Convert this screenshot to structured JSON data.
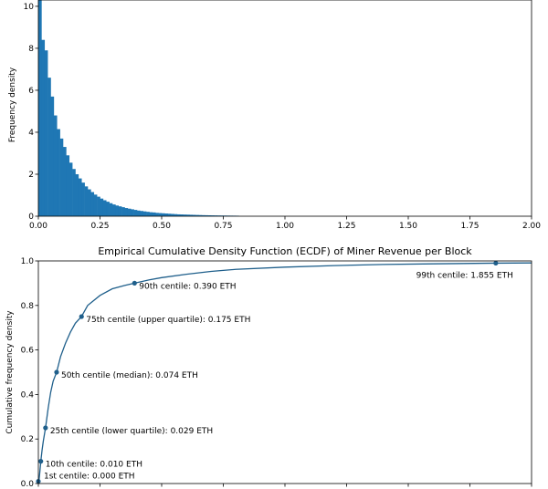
{
  "chart_data": [
    {
      "type": "bar",
      "title": "",
      "xlabel": "",
      "ylabel": "Frequency density",
      "xlim": [
        0,
        2.0
      ],
      "ylim": [
        0,
        10.3
      ],
      "xticks": [
        "0.00",
        "0.25",
        "0.50",
        "0.75",
        "1.00",
        "1.25",
        "1.50",
        "1.75",
        "2.00"
      ],
      "yticks": [
        "0",
        "2",
        "4",
        "6",
        "8",
        "10"
      ],
      "bar_color": "#1f77b4",
      "bin_width": 0.0125,
      "bins_start": [
        0.0,
        0.0125,
        0.025,
        0.0375,
        0.05,
        0.0625,
        0.075,
        0.0875,
        0.1,
        0.1125,
        0.125,
        0.1375,
        0.15,
        0.1625,
        0.175,
        0.1875,
        0.2,
        0.2125,
        0.225,
        0.2375,
        0.25,
        0.2625,
        0.275,
        0.2875,
        0.3,
        0.3125,
        0.325,
        0.3375,
        0.35,
        0.3625,
        0.375,
        0.3875,
        0.4,
        0.4125,
        0.425,
        0.4375,
        0.45,
        0.4625,
        0.475,
        0.4875,
        0.5,
        0.5125,
        0.525,
        0.5375,
        0.55,
        0.5625,
        0.575,
        0.5875,
        0.6,
        0.6125,
        0.625,
        0.6375,
        0.65,
        0.6625,
        0.675,
        0.6875,
        0.7,
        0.7125,
        0.725,
        0.7375,
        0.75,
        0.7625,
        0.775,
        0.7875,
        0.8
      ],
      "values": [
        10.3,
        8.4,
        7.9,
        6.6,
        5.7,
        4.8,
        4.15,
        3.7,
        3.3,
        2.9,
        2.55,
        2.25,
        2.0,
        1.8,
        1.6,
        1.42,
        1.28,
        1.15,
        1.03,
        0.93,
        0.84,
        0.76,
        0.69,
        0.62,
        0.56,
        0.51,
        0.47,
        0.43,
        0.39,
        0.36,
        0.33,
        0.3,
        0.27,
        0.25,
        0.23,
        0.21,
        0.19,
        0.18,
        0.16,
        0.15,
        0.14,
        0.13,
        0.12,
        0.11,
        0.1,
        0.09,
        0.085,
        0.08,
        0.075,
        0.07,
        0.065,
        0.06,
        0.055,
        0.05,
        0.047,
        0.044,
        0.041,
        0.038,
        0.035,
        0.033,
        0.031,
        0.029,
        0.027,
        0.025,
        0.023
      ]
    },
    {
      "type": "line",
      "title": "Empirical Cumulative Density Function (ECDF) of Miner Revenue per Block",
      "xlabel": "",
      "ylabel": "Cumulative frequency density",
      "xlim": [
        0,
        2.0
      ],
      "ylim": [
        0,
        1.0
      ],
      "yticks": [
        "0.0",
        "0.2",
        "0.4",
        "0.6",
        "0.8",
        "1.0"
      ],
      "line_color": "#1f5f8b",
      "curve": {
        "x": [
          0.0,
          0.002,
          0.005,
          0.01,
          0.015,
          0.02,
          0.029,
          0.04,
          0.05,
          0.06,
          0.074,
          0.09,
          0.11,
          0.13,
          0.15,
          0.175,
          0.2,
          0.25,
          0.3,
          0.35,
          0.39,
          0.45,
          0.5,
          0.6,
          0.7,
          0.8,
          1.0,
          1.2,
          1.4,
          1.6,
          1.855,
          2.0
        ],
        "y": [
          0.0,
          0.01,
          0.04,
          0.1,
          0.15,
          0.19,
          0.25,
          0.34,
          0.41,
          0.46,
          0.5,
          0.57,
          0.63,
          0.68,
          0.72,
          0.75,
          0.8,
          0.845,
          0.875,
          0.89,
          0.9,
          0.915,
          0.925,
          0.94,
          0.953,
          0.962,
          0.972,
          0.979,
          0.984,
          0.987,
          0.99,
          0.991
        ]
      },
      "markers": [
        {
          "x": 0.0,
          "y": 0.01,
          "label": "1st centile: 0.000 ETH"
        },
        {
          "x": 0.01,
          "y": 0.1,
          "label": "10th centile: 0.010 ETH"
        },
        {
          "x": 0.029,
          "y": 0.25,
          "label": "25th centile (lower quartile): 0.029 ETH"
        },
        {
          "x": 0.074,
          "y": 0.5,
          "label": "50th centile (median): 0.074 ETH"
        },
        {
          "x": 0.175,
          "y": 0.75,
          "label": "75th centile (upper quartile): 0.175 ETH"
        },
        {
          "x": 0.39,
          "y": 0.9,
          "label": "90th centile: 0.390 ETH"
        },
        {
          "x": 1.855,
          "y": 0.99,
          "label": "99th centile: 1.855 ETH"
        }
      ]
    }
  ]
}
